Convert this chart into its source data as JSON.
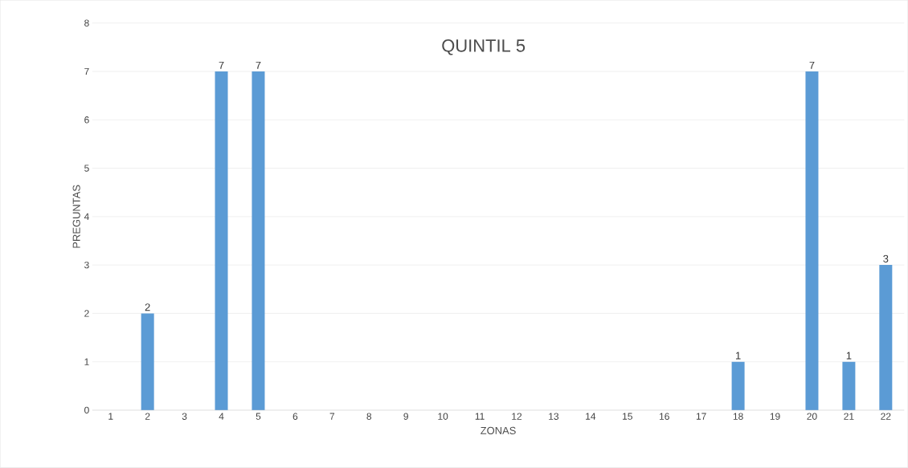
{
  "chart_data": {
    "type": "bar",
    "title": "QUINTIL 5",
    "xlabel": "ZONAS",
    "ylabel": "PREGUNTAS",
    "categories": [
      "1",
      "2",
      "3",
      "4",
      "5",
      "6",
      "7",
      "8",
      "9",
      "10",
      "11",
      "12",
      "13",
      "14",
      "15",
      "16",
      "17",
      "18",
      "19",
      "20",
      "21",
      "22"
    ],
    "values": [
      0,
      2,
      0,
      7,
      7,
      0,
      0,
      0,
      0,
      0,
      0,
      0,
      0,
      0,
      0,
      0,
      0,
      1,
      0,
      7,
      1,
      3
    ],
    "value_labels": [
      null,
      "2",
      null,
      "7",
      "7",
      null,
      null,
      null,
      null,
      null,
      null,
      null,
      null,
      null,
      null,
      null,
      null,
      "1",
      null,
      "7",
      "1",
      "3"
    ],
    "color": "#5b9bd5",
    "ylim": [
      0,
      8
    ],
    "yticks": [
      0,
      1,
      2,
      3,
      4,
      5,
      6,
      7,
      8
    ],
    "grid": "y"
  }
}
